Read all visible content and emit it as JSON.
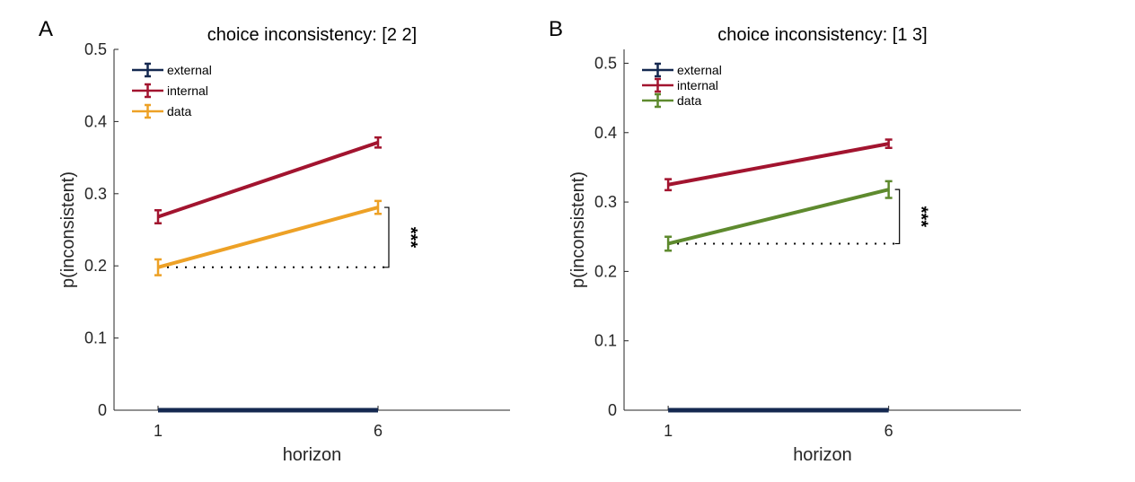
{
  "chart_data": [
    {
      "panel": "A",
      "type": "line",
      "title": "choice inconsistency: [2 2]",
      "xlabel": "horizon",
      "ylabel": "p(inconsistent)",
      "x": [
        1,
        6
      ],
      "x_ticks": [
        "1",
        "6"
      ],
      "xlim": [
        0,
        9
      ],
      "ylim": [
        0,
        0.5
      ],
      "y_ticks": [
        "0",
        "0.1",
        "0.2",
        "0.3",
        "0.4",
        "0.5"
      ],
      "legend_position": "top-left",
      "grid": false,
      "series": [
        {
          "name": "external",
          "color": "#142850",
          "values": [
            0.0,
            0.0
          ],
          "err": [
            0.0,
            0.0
          ]
        },
        {
          "name": "internal",
          "color": "#A2142F",
          "values": [
            0.268,
            0.371
          ],
          "err": [
            0.009,
            0.007
          ]
        },
        {
          "name": "data",
          "color": "#EDA126",
          "values": [
            0.198,
            0.281
          ],
          "err": [
            0.011,
            0.009
          ]
        }
      ],
      "significance": {
        "label": "***",
        "reference_value": 0.198
      }
    },
    {
      "panel": "B",
      "type": "line",
      "title": "choice inconsistency: [1 3]",
      "xlabel": "horizon",
      "ylabel": "p(inconsistent)",
      "x": [
        1,
        6
      ],
      "x_ticks": [
        "1",
        "6"
      ],
      "xlim": [
        0,
        9
      ],
      "ylim": [
        0,
        0.52
      ],
      "y_ticks": [
        "0",
        "0.1",
        "0.2",
        "0.3",
        "0.4",
        "0.5"
      ],
      "legend_position": "top-left",
      "grid": false,
      "series": [
        {
          "name": "external",
          "color": "#142850",
          "values": [
            0.0,
            0.0
          ],
          "err": [
            0.0,
            0.0
          ]
        },
        {
          "name": "internal",
          "color": "#A2142F",
          "values": [
            0.325,
            0.384
          ],
          "err": [
            0.008,
            0.006
          ]
        },
        {
          "name": "data",
          "color": "#5E8A2E",
          "values": [
            0.24,
            0.318
          ],
          "err": [
            0.01,
            0.012
          ]
        }
      ],
      "significance": {
        "label": "***",
        "reference_value": 0.24
      }
    }
  ]
}
